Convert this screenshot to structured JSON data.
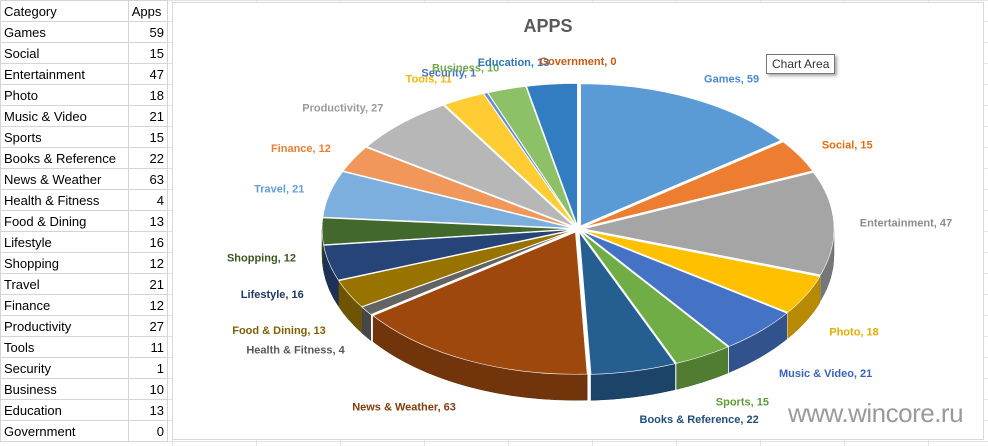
{
  "sheet": {
    "header": [
      "Category",
      "Apps"
    ],
    "rows": [
      [
        "Games",
        59
      ],
      [
        "Social",
        15
      ],
      [
        "Entertainment",
        47
      ],
      [
        "Photo",
        18
      ],
      [
        "Music & Video",
        21
      ],
      [
        "Sports",
        15
      ],
      [
        "Books & Reference",
        22
      ],
      [
        "News & Weather",
        63
      ],
      [
        "Health & Fitness",
        4
      ],
      [
        "Food & Dining",
        13
      ],
      [
        "Lifestyle",
        16
      ],
      [
        "Shopping",
        12
      ],
      [
        "Travel",
        21
      ],
      [
        "Finance",
        12
      ],
      [
        "Productivity",
        27
      ],
      [
        "Tools",
        11
      ],
      [
        "Security",
        1
      ],
      [
        "Business",
        10
      ],
      [
        "Education",
        13
      ],
      [
        "Government",
        0
      ]
    ]
  },
  "tooltip": "Chart Area",
  "watermark": "www.wincore.ru",
  "chart_data": {
    "type": "pie",
    "title": "APPS",
    "categories": [
      "Games",
      "Social",
      "Entertainment",
      "Photo",
      "Music & Video",
      "Sports",
      "Books & Reference",
      "News & Weather",
      "Health & Fitness",
      "Food & Dining",
      "Lifestyle",
      "Shopping",
      "Travel",
      "Finance",
      "Productivity",
      "Tools",
      "Security",
      "Business",
      "Education",
      "Government"
    ],
    "values": [
      59,
      15,
      47,
      18,
      21,
      15,
      22,
      63,
      4,
      13,
      16,
      12,
      21,
      12,
      27,
      11,
      1,
      10,
      13,
      0
    ],
    "colors": [
      "#5b9bd5",
      "#ed7d31",
      "#a5a5a5",
      "#ffc000",
      "#4472c4",
      "#70ad47",
      "#255e91",
      "#9e480e",
      "#636363",
      "#997300",
      "#264478",
      "#43682b",
      "#7cafdd",
      "#f1975a",
      "#b7b7b7",
      "#ffcd33",
      "#698ed0",
      "#8cc168",
      "#327dc2",
      "#d26012"
    ],
    "label_colors": [
      "#4a8ad0",
      "#e46c0a",
      "#8c8c8c",
      "#e6ad00",
      "#3a62b8",
      "#5e9c38",
      "#1f4e79",
      "#843c0c",
      "#595959",
      "#806000",
      "#1f3864",
      "#385723",
      "#5f9ed6",
      "#ed7d31",
      "#9a9a9a",
      "#f0b800",
      "#4a72c4",
      "#6fa84a",
      "#2e75b6",
      "#c55a11"
    ],
    "label_format": "category, value",
    "legend": "none",
    "style": "3d-exploded-pie"
  }
}
